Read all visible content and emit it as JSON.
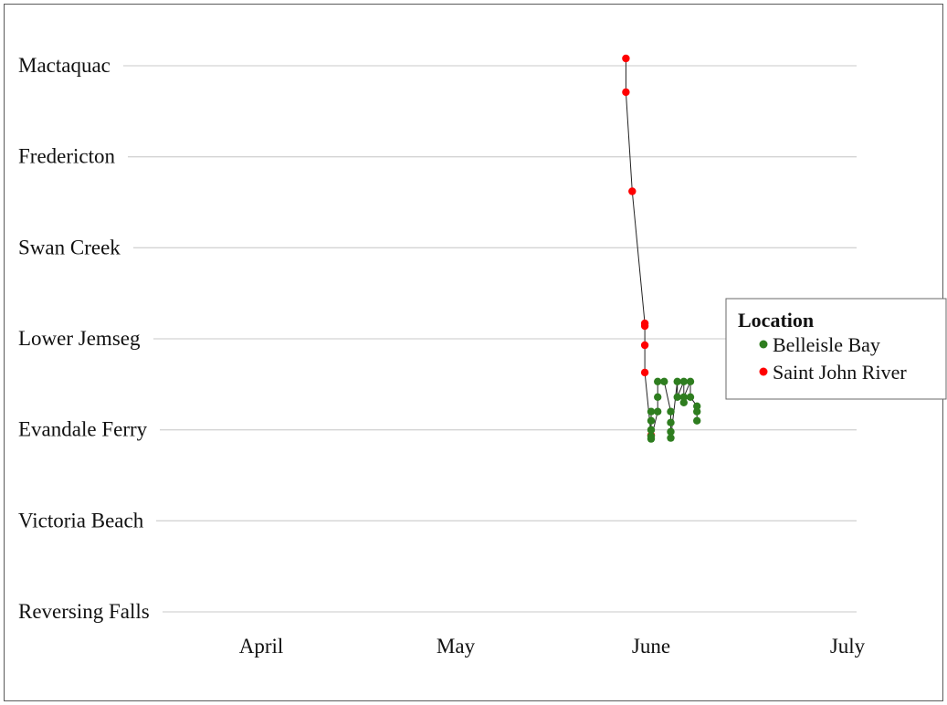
{
  "chart_data": {
    "type": "line",
    "title": "",
    "xlabel": "",
    "ylabel": "",
    "x_ticks": [
      "April",
      "May",
      "June",
      "July"
    ],
    "y_categories": [
      "Reversing Falls",
      "Victoria Beach",
      "Evandale Ferry",
      "Lower Jemseg",
      "Swan Creek",
      "Fredericton",
      "Mactaquac"
    ],
    "grid": true,
    "legend": {
      "title": "Location",
      "placement": "right",
      "entries": [
        {
          "label": "Belleisle Bay",
          "color": "#2e7d1f"
        },
        {
          "label": "Saint John River",
          "color": "#ff0000"
        }
      ]
    },
    "connector_color": "#222222",
    "series": [
      {
        "name": "Saint John River",
        "color": "#ff0000",
        "points": [
          {
            "x": "2013-05-28",
            "y": 6.08
          },
          {
            "x": "2013-05-28",
            "y": 5.71
          },
          {
            "x": "2013-05-29",
            "y": 4.62
          },
          {
            "x": "2013-05-31",
            "y": 3.17
          },
          {
            "x": "2013-05-31",
            "y": 3.14
          },
          {
            "x": "2013-05-31",
            "y": 2.93
          },
          {
            "x": "2013-05-31",
            "y": 2.63
          },
          {
            "x": "2013-06-01",
            "y": 1.94
          }
        ]
      },
      {
        "name": "Belleisle Bay",
        "color": "#2e7d1f",
        "points": [
          {
            "x": "2013-06-01",
            "y": 2.2
          },
          {
            "x": "2013-06-01",
            "y": 2.1
          },
          {
            "x": "2013-06-01",
            "y": 2.0
          },
          {
            "x": "2013-06-01",
            "y": 1.93
          },
          {
            "x": "2013-06-01",
            "y": 1.9
          },
          {
            "x": "2013-06-02",
            "y": 2.2
          },
          {
            "x": "2013-06-02",
            "y": 2.36
          },
          {
            "x": "2013-06-02",
            "y": 2.53
          },
          {
            "x": "2013-06-03",
            "y": 2.53
          },
          {
            "x": "2013-06-04",
            "y": 2.2
          },
          {
            "x": "2013-06-04",
            "y": 2.08
          },
          {
            "x": "2013-06-04",
            "y": 1.98
          },
          {
            "x": "2013-06-04",
            "y": 1.91
          },
          {
            "x": "2013-06-05",
            "y": 2.53
          },
          {
            "x": "2013-06-05",
            "y": 2.36
          },
          {
            "x": "2013-06-06",
            "y": 2.53
          },
          {
            "x": "2013-06-06",
            "y": 2.3
          },
          {
            "x": "2013-06-06",
            "y": 2.36
          },
          {
            "x": "2013-06-07",
            "y": 2.53
          },
          {
            "x": "2013-06-07",
            "y": 2.36
          },
          {
            "x": "2013-06-08",
            "y": 2.26
          },
          {
            "x": "2013-06-08",
            "y": 2.2
          },
          {
            "x": "2013-06-08",
            "y": 2.1
          }
        ]
      }
    ]
  }
}
